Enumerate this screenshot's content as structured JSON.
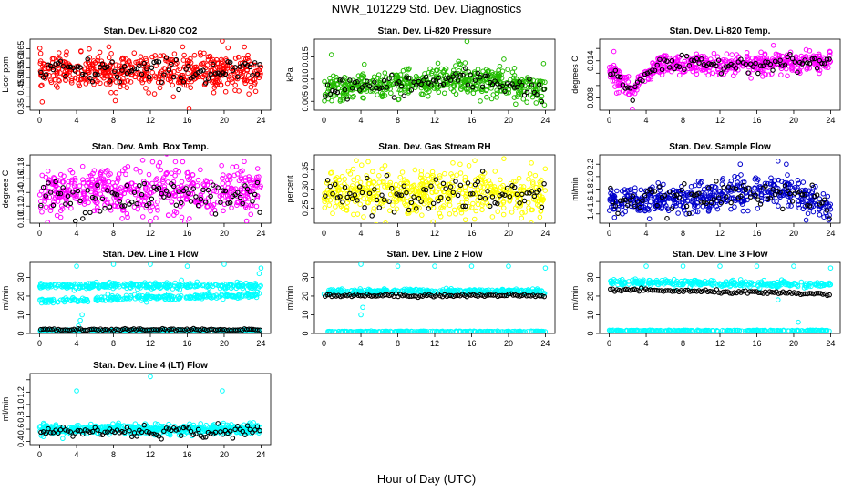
{
  "page": {
    "title": "NWR_101229  Std. Dev. Diagnostics",
    "xlabel": "Hour of Day (UTC)"
  },
  "colors": {
    "red": "#ff0000",
    "green": "#22bb00",
    "magenta": "#ff00ff",
    "yellow": "#ffff00",
    "blue": "#0000cc",
    "cyan": "#00ffff",
    "black": "#000000"
  },
  "chart_data": [
    {
      "type": "scatter",
      "title": "Stan. Dev. Li-820 CO2",
      "ylabel": "Licor ppm",
      "xlim": [
        0,
        24
      ],
      "xticks": [
        0,
        4,
        8,
        12,
        16,
        20,
        24
      ],
      "ylim": [
        0.33,
        0.7
      ],
      "yticks": [
        0.35,
        0.4,
        0.45,
        0.5,
        0.55,
        0.6,
        0.65
      ],
      "ytick_labels": [
        "0.35",
        "",
        "0.45",
        "0.50",
        "0.55",
        "0.60",
        "0.65"
      ],
      "color": "red",
      "bands": [
        {
          "mean": 0.53,
          "sd": 0.045,
          "n": 520
        }
      ],
      "black": {
        "mean": 0.53,
        "sd": 0.035,
        "n": 90
      },
      "outliers": [
        {
          "x": 7.5,
          "y": 0.66
        },
        {
          "x": 15.5,
          "y": 0.66
        },
        {
          "x": 19.8,
          "y": 0.69
        },
        {
          "x": 16.2,
          "y": 0.34
        },
        {
          "x": 8.2,
          "y": 0.38
        }
      ]
    },
    {
      "type": "scatter",
      "title": "Stan. Dev. Li-820 Pressure",
      "ylabel": "kPa",
      "xlim": [
        0,
        24
      ],
      "xticks": [
        0,
        4,
        8,
        12,
        16,
        20,
        24
      ],
      "ylim": [
        0.003,
        0.019
      ],
      "yticks": [
        0.005,
        0.01,
        0.015
      ],
      "ytick_labels": [
        "0.005",
        "0.010",
        "0.015"
      ],
      "color": "green",
      "bands": [
        {
          "mean": 0.0085,
          "sd": 0.0016,
          "n": 520
        }
      ],
      "trend": [
        {
          "x": 0,
          "y": 0.008
        },
        {
          "x": 8,
          "y": 0.0085
        },
        {
          "x": 14,
          "y": 0.01
        },
        {
          "x": 18,
          "y": 0.0095
        },
        {
          "x": 24,
          "y": 0.0075
        }
      ],
      "black": {
        "mean": 0.0085,
        "sd": 0.0012,
        "n": 90
      },
      "outliers": [
        {
          "x": 15.5,
          "y": 0.0185
        },
        {
          "x": 0.8,
          "y": 0.0155
        },
        {
          "x": 23.8,
          "y": 0.0135
        },
        {
          "x": 19.5,
          "y": 0.0145
        }
      ]
    },
    {
      "type": "scatter",
      "title": "Stan. Dev. Li-820 Temp.",
      "ylabel": "degrees C",
      "xlim": [
        0,
        24
      ],
      "xticks": [
        0,
        4,
        8,
        12,
        16,
        20,
        24
      ],
      "ylim": [
        0.006,
        0.0175
      ],
      "yticks": [
        0.008,
        0.01,
        0.012,
        0.014,
        0.016
      ],
      "ytick_labels": [
        "0.008",
        "",
        "",
        "0.014",
        ""
      ],
      "color": "magenta",
      "bands": [
        {
          "mean": 0.0135,
          "sd": 0.0008,
          "n": 500
        }
      ],
      "trend": [
        {
          "x": 0,
          "y": 0.0125
        },
        {
          "x": 1.5,
          "y": 0.0105
        },
        {
          "x": 2.5,
          "y": 0.009
        },
        {
          "x": 3.5,
          "y": 0.0115
        },
        {
          "x": 5,
          "y": 0.0132
        },
        {
          "x": 24,
          "y": 0.0138
        }
      ],
      "black": {
        "mean": 0.0135,
        "sd": 0.0006,
        "n": 90
      },
      "outliers": [
        {
          "x": 2.5,
          "y": 0.0062
        },
        {
          "x": 17.8,
          "y": 0.0165
        },
        {
          "x": 0.5,
          "y": 0.0155
        }
      ]
    },
    {
      "type": "scatter",
      "title": "Stan. Dev. Amb. Box Temp.",
      "ylabel": "degrees C",
      "xlim": [
        0,
        24
      ],
      "xticks": [
        0,
        4,
        8,
        12,
        16,
        20,
        24
      ],
      "ylim": [
        0.095,
        0.195
      ],
      "yticks": [
        0.1,
        0.12,
        0.14,
        0.16,
        0.18
      ],
      "ytick_labels": [
        "0.10",
        "0.12",
        "0.14",
        "0.16",
        "0.18"
      ],
      "color": "magenta",
      "bands": [
        {
          "mean": 0.14,
          "sd": 0.018,
          "n": 520
        }
      ],
      "black": {
        "mean": 0.135,
        "sd": 0.014,
        "n": 90
      },
      "outliers": [
        {
          "x": 12,
          "y": 0.098
        },
        {
          "x": 15.5,
          "y": 0.185
        }
      ]
    },
    {
      "type": "scatter",
      "title": "Stan. Dev. Gas Stream RH",
      "ylabel": "percent",
      "xlim": [
        0,
        24
      ],
      "xticks": [
        0,
        4,
        8,
        12,
        16,
        20,
        24
      ],
      "ylim": [
        0.21,
        0.39
      ],
      "yticks": [
        0.25,
        0.3,
        0.35
      ],
      "ytick_labels": [
        "0.25",
        "0.30",
        "0.35"
      ],
      "color": "yellow",
      "bands": [
        {
          "mean": 0.29,
          "sd": 0.03,
          "n": 520
        }
      ],
      "black": {
        "mean": 0.285,
        "sd": 0.022,
        "n": 90
      },
      "outliers": [
        {
          "x": 19.5,
          "y": 0.38
        },
        {
          "x": 3.5,
          "y": 0.375
        }
      ]
    },
    {
      "type": "scatter",
      "title": "Stan. Dev. Sample Flow",
      "ylabel": "ml/min",
      "xlim": [
        0,
        24
      ],
      "xticks": [
        0,
        4,
        8,
        12,
        16,
        20,
        24
      ],
      "ylim": [
        1.25,
        2.35
      ],
      "yticks": [
        1.4,
        1.6,
        1.8,
        2.0,
        2.2
      ],
      "ytick_labels": [
        "1.4",
        "1.6",
        "1.8",
        "2.0",
        "2.2"
      ],
      "color": "blue",
      "bands": [
        {
          "mean": 1.65,
          "sd": 0.12,
          "n": 500
        }
      ],
      "trend": [
        {
          "x": 0,
          "y": 1.6
        },
        {
          "x": 10,
          "y": 1.65
        },
        {
          "x": 18,
          "y": 1.8
        },
        {
          "x": 21,
          "y": 1.7
        },
        {
          "x": 24,
          "y": 1.45
        }
      ],
      "black": {
        "mean": 1.65,
        "sd": 0.1,
        "n": 90
      },
      "outliers": [
        {
          "x": 14.2,
          "y": 2.2
        },
        {
          "x": 18.3,
          "y": 2.25
        },
        {
          "x": 19.2,
          "y": 2.2
        },
        {
          "x": 23.8,
          "y": 1.3
        }
      ]
    },
    {
      "type": "scatter",
      "title": "Stan. Dev. Line 1 Flow",
      "ylabel": "ml/min",
      "xlim": [
        0,
        24
      ],
      "xticks": [
        0,
        4,
        8,
        12,
        16,
        20,
        24
      ],
      "ylim": [
        0,
        38
      ],
      "yticks": [
        0,
        10,
        20,
        30
      ],
      "ytick_labels": [
        "0",
        "10",
        "20",
        "30"
      ],
      "color": "cyan",
      "bands": [
        {
          "mean": 25.5,
          "sd": 0.8,
          "n": 300,
          "x0": 0,
          "x1": 24
        },
        {
          "mean": 17.5,
          "sd": 0.8,
          "n": 260,
          "x0": 0,
          "x1": 24,
          "drift": 3
        },
        {
          "mean": 1.5,
          "sd": 0.2,
          "n": 250,
          "x0": 0,
          "x1": 24
        }
      ],
      "black": {
        "mean": 2.0,
        "sd": 0.3,
        "n": 100
      },
      "outliers": [
        {
          "x": 4,
          "y": 36
        },
        {
          "x": 8,
          "y": 37
        },
        {
          "x": 12,
          "y": 37
        },
        {
          "x": 16,
          "y": 36
        },
        {
          "x": 20,
          "y": 37
        },
        {
          "x": 24,
          "y": 35
        },
        {
          "x": 4.2,
          "y": 4
        },
        {
          "x": 4.4,
          "y": 7
        },
        {
          "x": 4.6,
          "y": 10
        },
        {
          "x": 23.8,
          "y": 32
        }
      ]
    },
    {
      "type": "scatter",
      "title": "Stan. Dev. Line 2 Flow",
      "ylabel": "ml/min",
      "xlim": [
        0,
        24
      ],
      "xticks": [
        0,
        4,
        8,
        12,
        16,
        20,
        24
      ],
      "ylim": [
        0,
        38
      ],
      "yticks": [
        0,
        10,
        20,
        30
      ],
      "ytick_labels": [
        "0",
        "10",
        "20",
        "30"
      ],
      "color": "cyan",
      "bands": [
        {
          "mean": 22.5,
          "sd": 0.6,
          "n": 300,
          "x0": 0,
          "x1": 24
        },
        {
          "mean": 1.0,
          "sd": 0.15,
          "n": 250,
          "x0": 0,
          "x1": 24
        }
      ],
      "black": {
        "mean": 20.3,
        "sd": 0.4,
        "n": 100
      },
      "outliers": [
        {
          "x": 4,
          "y": 37
        },
        {
          "x": 8,
          "y": 36
        },
        {
          "x": 12,
          "y": 36
        },
        {
          "x": 16,
          "y": 36
        },
        {
          "x": 20,
          "y": 36
        },
        {
          "x": 24,
          "y": 35
        },
        {
          "x": 4,
          "y": 10
        },
        {
          "x": 4.2,
          "y": 14
        }
      ]
    },
    {
      "type": "scatter",
      "title": "Stan. Dev. Line 3 Flow",
      "ylabel": "ml/min",
      "xlim": [
        0,
        24
      ],
      "xticks": [
        0,
        4,
        8,
        12,
        16,
        20,
        24
      ],
      "ylim": [
        0,
        38
      ],
      "yticks": [
        0,
        10,
        20,
        30
      ],
      "ytick_labels": [
        "0",
        "10",
        "20",
        "30"
      ],
      "color": "cyan",
      "bands": [
        {
          "mean": 27.5,
          "sd": 0.8,
          "n": 300,
          "x0": 0,
          "x1": 24,
          "drift": -1.5
        },
        {
          "mean": 1.5,
          "sd": 0.15,
          "n": 250,
          "x0": 0,
          "x1": 24
        }
      ],
      "black": {
        "mean": 23.5,
        "sd": 0.4,
        "n": 100,
        "drift": -2.5
      },
      "outliers": [
        {
          "x": 4,
          "y": 36
        },
        {
          "x": 8,
          "y": 36
        },
        {
          "x": 12,
          "y": 36
        },
        {
          "x": 16,
          "y": 36
        },
        {
          "x": 20,
          "y": 36
        },
        {
          "x": 24,
          "y": 35
        },
        {
          "x": 20.5,
          "y": 6
        },
        {
          "x": 18.3,
          "y": 18
        }
      ]
    },
    {
      "type": "scatter",
      "title": "Stan. Dev. Line 4 (LT) Flow",
      "ylabel": "ml/min",
      "xlim": [
        0,
        24
      ],
      "xticks": [
        0,
        4,
        8,
        12,
        16,
        20,
        24
      ],
      "ylim": [
        0.35,
        1.5
      ],
      "yticks": [
        0.4,
        0.6,
        0.8,
        1.0,
        1.2,
        1.4
      ],
      "ytick_labels": [
        "0.4",
        "0.6",
        "0.8",
        "1.0",
        "1.2",
        ""
      ],
      "color": "cyan",
      "bands": [
        {
          "mean": 0.6,
          "sd": 0.04,
          "n": 500
        }
      ],
      "black": {
        "mean": 0.56,
        "sd": 0.05,
        "n": 90
      },
      "outliers": [
        {
          "x": 12,
          "y": 1.45
        },
        {
          "x": 4,
          "y": 1.22
        },
        {
          "x": 19.8,
          "y": 1.22
        },
        {
          "x": 0.4,
          "y": 0.48
        },
        {
          "x": 2.5,
          "y": 0.45
        }
      ]
    }
  ]
}
